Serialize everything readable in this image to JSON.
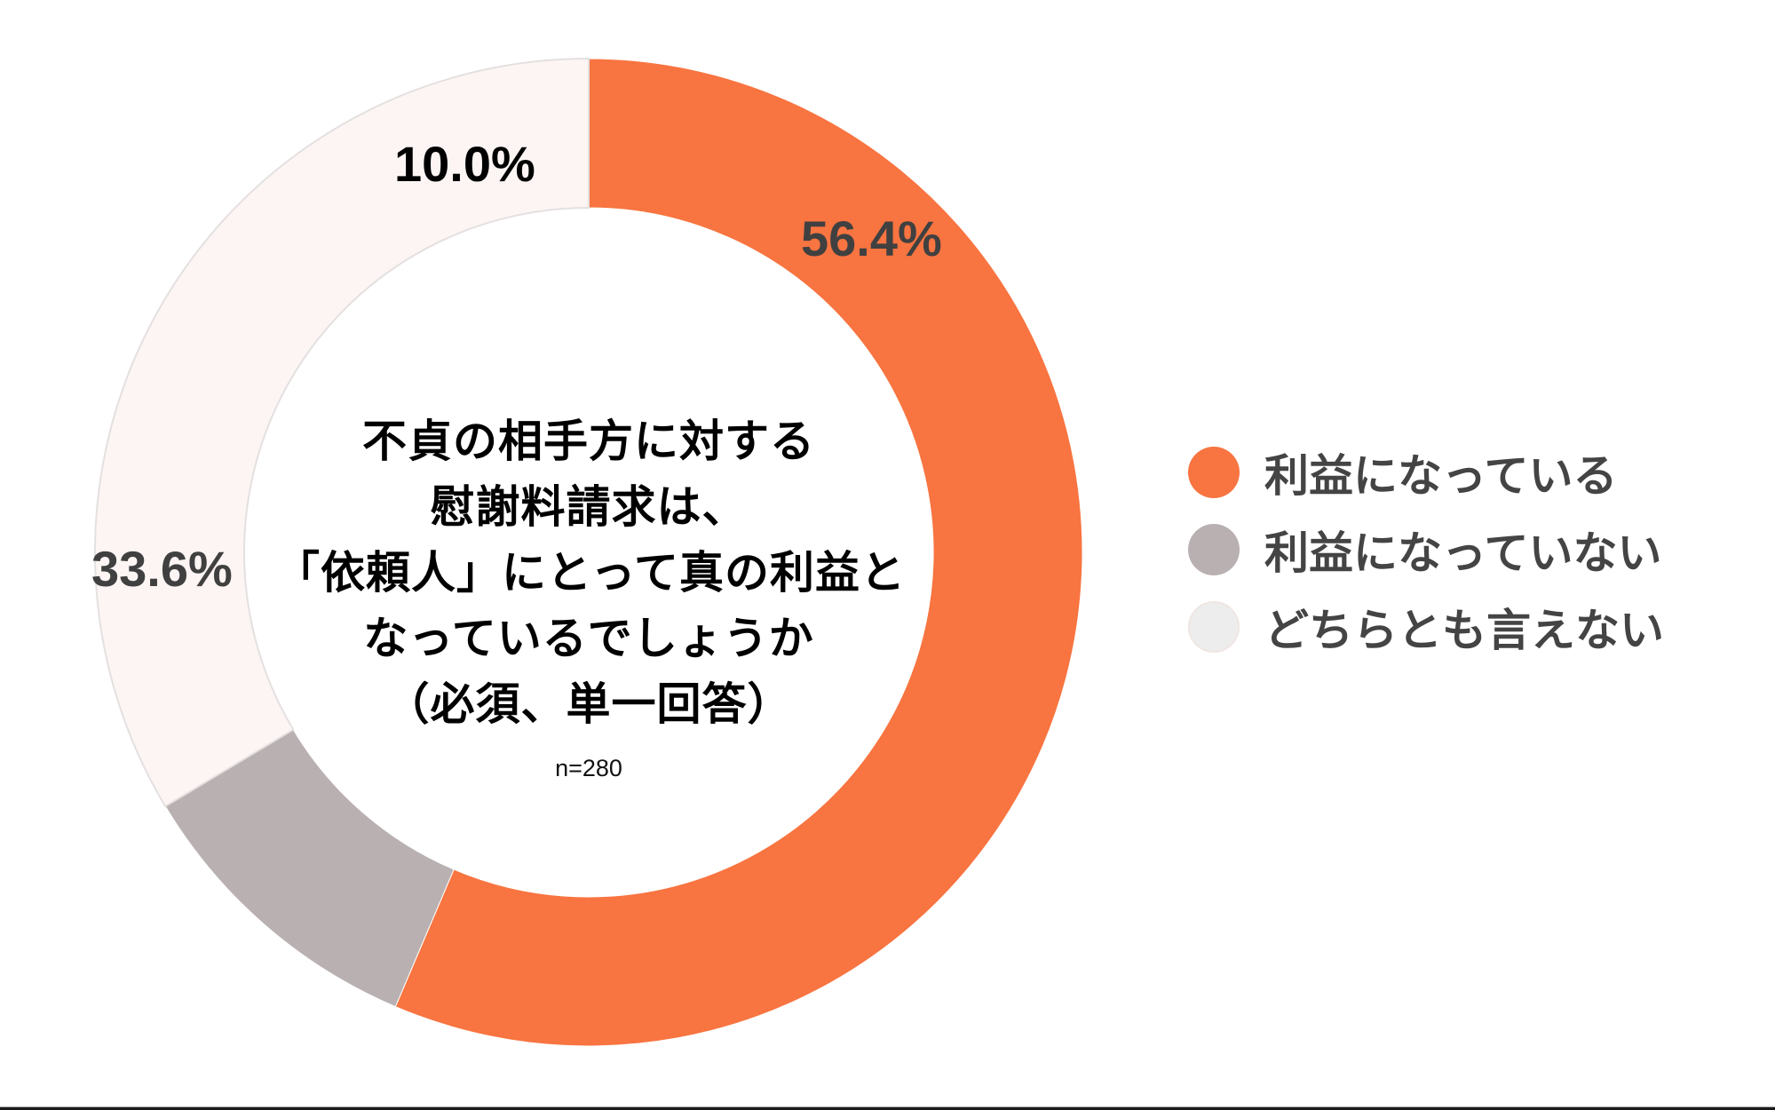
{
  "chart_data": {
    "type": "pie",
    "variant": "donut",
    "title": "不貞の相手方に対する慰謝料請求は、「依頼人」にとって真の利益となっているでしょうか（必須、単一回答）",
    "title_lines": [
      "不貞の相手方に対する",
      "慰謝料請求は、",
      "「依頼人」にとって真の利益と",
      "なっているでしょうか",
      "（必須、単一回答）"
    ],
    "sample_size": "n=280",
    "categories": [
      "利益になっている",
      "利益になっていない",
      "どちらとも言えない"
    ],
    "values": [
      56.4,
      10.0,
      33.6
    ],
    "unit": "%",
    "data_labels": [
      "56.4%",
      "10.0%",
      "33.6%"
    ],
    "colors": [
      "#F87440",
      "#B9B0B1",
      "#FDF5F4"
    ],
    "legend_colors": [
      "#F87440",
      "#B9B0B1",
      "#EEEDEE"
    ],
    "label_colors": [
      "#404040",
      "#000000",
      "#404040"
    ],
    "start_angle_deg": 0,
    "direction": "clockwise",
    "legend_position": "right"
  },
  "legend": {
    "items": [
      {
        "label": "利益になっている",
        "color": "#F87440"
      },
      {
        "label": "利益になっていない",
        "color": "#B9B0B1"
      },
      {
        "label": "どちらとも言えない",
        "color": "#EEEDEE"
      }
    ]
  }
}
